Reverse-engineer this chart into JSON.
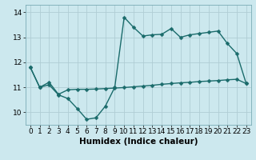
{
  "title": "",
  "xlabel": "Humidex (Indice chaleur)",
  "background_color": "#cce8ee",
  "grid_color": "#b0cdd4",
  "line_color": "#1a6b6b",
  "xlim": [
    -0.5,
    23.5
  ],
  "ylim": [
    9.5,
    14.3
  ],
  "yticks": [
    10,
    11,
    12,
    13,
    14
  ],
  "xticks": [
    0,
    1,
    2,
    3,
    4,
    5,
    6,
    7,
    8,
    9,
    10,
    11,
    12,
    13,
    14,
    15,
    16,
    17,
    18,
    19,
    20,
    21,
    22,
    23
  ],
  "series1_x": [
    0,
    1,
    2,
    3,
    4,
    5,
    6,
    7,
    8,
    9,
    10,
    11,
    12,
    13,
    14,
    15,
    16,
    17,
    18,
    19,
    20,
    21,
    22,
    23
  ],
  "series1_y": [
    11.8,
    11.0,
    11.1,
    10.7,
    10.55,
    10.15,
    9.72,
    9.78,
    10.25,
    11.0,
    13.8,
    13.4,
    13.05,
    13.1,
    13.12,
    13.35,
    13.0,
    13.1,
    13.15,
    13.2,
    13.25,
    12.75,
    12.35,
    11.15
  ],
  "series2_x": [
    0,
    1,
    2,
    3,
    4,
    5,
    6,
    7,
    8,
    9,
    10,
    11,
    12,
    13,
    14,
    15,
    16,
    17,
    18,
    19,
    20,
    21,
    22,
    23
  ],
  "series2_y": [
    11.8,
    11.0,
    11.2,
    10.72,
    10.9,
    10.92,
    10.92,
    10.93,
    10.95,
    10.97,
    10.99,
    11.02,
    11.05,
    11.08,
    11.12,
    11.15,
    11.18,
    11.2,
    11.23,
    11.25,
    11.27,
    11.3,
    11.32,
    11.15
  ],
  "marker_size": 2.5,
  "line_width": 1.0,
  "xlabel_fontsize": 7.5,
  "tick_fontsize": 6.5
}
